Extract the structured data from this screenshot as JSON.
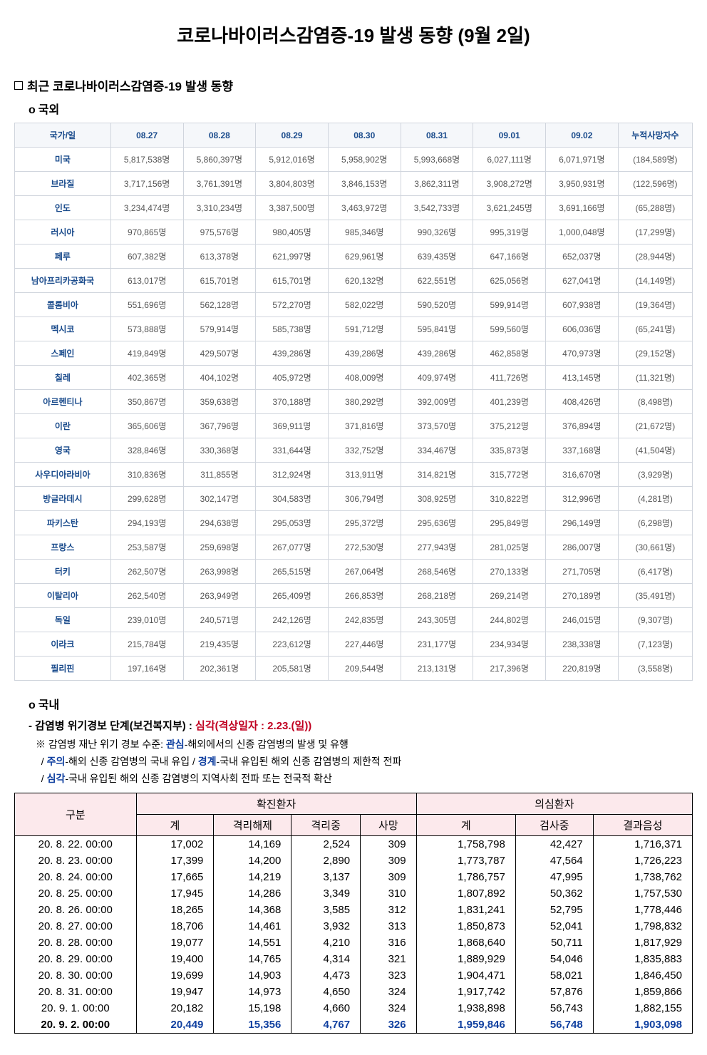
{
  "title": "코로나바이러스감염증-19 발생 동향 (9월 2일)",
  "section1": {
    "heading": "최근 코로나바이러스감염증-19 발생 동향",
    "sub_overseas": "국외",
    "sub_domestic": "국내"
  },
  "intl_table": {
    "headers": [
      "국가/일",
      "08.27",
      "08.28",
      "08.29",
      "08.30",
      "08.31",
      "09.01",
      "09.02",
      "누적사망자수"
    ],
    "rows": [
      {
        "country": "미국",
        "v": [
          "5,817,538명",
          "5,860,397명",
          "5,912,016명",
          "5,958,902명",
          "5,993,668명",
          "6,027,111명",
          "6,071,971명",
          "(184,589명)"
        ]
      },
      {
        "country": "브라질",
        "v": [
          "3,717,156명",
          "3,761,391명",
          "3,804,803명",
          "3,846,153명",
          "3,862,311명",
          "3,908,272명",
          "3,950,931명",
          "(122,596명)"
        ]
      },
      {
        "country": "인도",
        "v": [
          "3,234,474명",
          "3,310,234명",
          "3,387,500명",
          "3,463,972명",
          "3,542,733명",
          "3,621,245명",
          "3,691,166명",
          "(65,288명)"
        ]
      },
      {
        "country": "러시아",
        "v": [
          "970,865명",
          "975,576명",
          "980,405명",
          "985,346명",
          "990,326명",
          "995,319명",
          "1,000,048명",
          "(17,299명)"
        ]
      },
      {
        "country": "페루",
        "v": [
          "607,382명",
          "613,378명",
          "621,997명",
          "629,961명",
          "639,435명",
          "647,166명",
          "652,037명",
          "(28,944명)"
        ]
      },
      {
        "country": "남아프리카공화국",
        "v": [
          "613,017명",
          "615,701명",
          "615,701명",
          "620,132명",
          "622,551명",
          "625,056명",
          "627,041명",
          "(14,149명)"
        ]
      },
      {
        "country": "콜롬비아",
        "v": [
          "551,696명",
          "562,128명",
          "572,270명",
          "582,022명",
          "590,520명",
          "599,914명",
          "607,938명",
          "(19,364명)"
        ]
      },
      {
        "country": "멕시코",
        "v": [
          "573,888명",
          "579,914명",
          "585,738명",
          "591,712명",
          "595,841명",
          "599,560명",
          "606,036명",
          "(65,241명)"
        ]
      },
      {
        "country": "스페인",
        "v": [
          "419,849명",
          "429,507명",
          "439,286명",
          "439,286명",
          "439,286명",
          "462,858명",
          "470,973명",
          "(29,152명)"
        ]
      },
      {
        "country": "칠레",
        "v": [
          "402,365명",
          "404,102명",
          "405,972명",
          "408,009명",
          "409,974명",
          "411,726명",
          "413,145명",
          "(11,321명)"
        ]
      },
      {
        "country": "아르헨티나",
        "v": [
          "350,867명",
          "359,638명",
          "370,188명",
          "380,292명",
          "392,009명",
          "401,239명",
          "408,426명",
          "(8,498명)"
        ]
      },
      {
        "country": "이란",
        "v": [
          "365,606명",
          "367,796명",
          "369,911명",
          "371,816명",
          "373,570명",
          "375,212명",
          "376,894명",
          "(21,672명)"
        ]
      },
      {
        "country": "영국",
        "v": [
          "328,846명",
          "330,368명",
          "331,644명",
          "332,752명",
          "334,467명",
          "335,873명",
          "337,168명",
          "(41,504명)"
        ]
      },
      {
        "country": "사우디아라비아",
        "v": [
          "310,836명",
          "311,855명",
          "312,924명",
          "313,911명",
          "314,821명",
          "315,772명",
          "316,670명",
          "(3,929명)"
        ]
      },
      {
        "country": "방글라데시",
        "v": [
          "299,628명",
          "302,147명",
          "304,583명",
          "306,794명",
          "308,925명",
          "310,822명",
          "312,996명",
          "(4,281명)"
        ]
      },
      {
        "country": "파키스탄",
        "v": [
          "294,193명",
          "294,638명",
          "295,053명",
          "295,372명",
          "295,636명",
          "295,849명",
          "296,149명",
          "(6,298명)"
        ]
      },
      {
        "country": "프랑스",
        "v": [
          "253,587명",
          "259,698명",
          "267,077명",
          "272,530명",
          "277,943명",
          "281,025명",
          "286,007명",
          "(30,661명)"
        ]
      },
      {
        "country": "터키",
        "v": [
          "262,507명",
          "263,998명",
          "265,515명",
          "267,064명",
          "268,546명",
          "270,133명",
          "271,705명",
          "(6,417명)"
        ]
      },
      {
        "country": "이탈리아",
        "v": [
          "262,540명",
          "263,949명",
          "265,409명",
          "266,853명",
          "268,218명",
          "269,214명",
          "270,189명",
          "(35,491명)"
        ]
      },
      {
        "country": "독일",
        "v": [
          "239,010명",
          "240,571명",
          "242,126명",
          "242,835명",
          "243,305명",
          "244,802명",
          "246,015명",
          "(9,307명)"
        ]
      },
      {
        "country": "이라크",
        "v": [
          "215,784명",
          "219,435명",
          "223,612명",
          "227,446명",
          "231,177명",
          "234,934명",
          "238,338명",
          "(7,123명)"
        ]
      },
      {
        "country": "필리핀",
        "v": [
          "197,164명",
          "202,361명",
          "205,581명",
          "209,544명",
          "213,131명",
          "217,396명",
          "220,819명",
          "(3,558명)"
        ]
      }
    ]
  },
  "alert": {
    "prefix": "- 감염병 위기경보 단계(보건복지부) : ",
    "level": "심각(격상일자 : 2.23.(일))",
    "note_prefix": "※ 감염병 재난 위기 경보 수준: ",
    "n1a": "관심",
    "n1b": "-해외에서의 신종 감염병의 발생 및 유행",
    "n2a": "주의",
    "n2b": "-해외 신종 감염병의 국내 유입 / ",
    "n2c": "경계",
    "n2d": "-국내 유입된 해외 신종 감염병의 제한적 전파",
    "n3a": "심각",
    "n3b": "-국내 유입된 해외 신종 감염병의 지역사회 전파 또는 전국적 확산"
  },
  "dom_table": {
    "header_top": {
      "col1": "구분",
      "col2": "확진환자",
      "col3": "의심환자"
    },
    "header_sub": {
      "c1": "계",
      "c2": "격리해제",
      "c3": "격리중",
      "c4": "사망",
      "c5": "계",
      "c6": "검사중",
      "c7": "결과음성"
    },
    "rows": [
      {
        "date": "20. 8. 22. 00:00",
        "v": [
          "17,002",
          "14,169",
          "2,524",
          "309",
          "1,758,798",
          "42,427",
          "1,716,371"
        ]
      },
      {
        "date": "20. 8. 23. 00:00",
        "v": [
          "17,399",
          "14,200",
          "2,890",
          "309",
          "1,773,787",
          "47,564",
          "1,726,223"
        ]
      },
      {
        "date": "20. 8. 24. 00:00",
        "v": [
          "17,665",
          "14,219",
          "3,137",
          "309",
          "1,786,757",
          "47,995",
          "1,738,762"
        ]
      },
      {
        "date": "20. 8. 25. 00:00",
        "v": [
          "17,945",
          "14,286",
          "3,349",
          "310",
          "1,807,892",
          "50,362",
          "1,757,530"
        ]
      },
      {
        "date": "20. 8. 26. 00:00",
        "v": [
          "18,265",
          "14,368",
          "3,585",
          "312",
          "1,831,241",
          "52,795",
          "1,778,446"
        ]
      },
      {
        "date": "20. 8. 27. 00:00",
        "v": [
          "18,706",
          "14,461",
          "3,932",
          "313",
          "1,850,873",
          "52,041",
          "1,798,832"
        ]
      },
      {
        "date": "20. 8. 28. 00:00",
        "v": [
          "19,077",
          "14,551",
          "4,210",
          "316",
          "1,868,640",
          "50,711",
          "1,817,929"
        ]
      },
      {
        "date": "20. 8. 29. 00:00",
        "v": [
          "19,400",
          "14,765",
          "4,314",
          "321",
          "1,889,929",
          "54,046",
          "1,835,883"
        ]
      },
      {
        "date": "20. 8. 30. 00:00",
        "v": [
          "19,699",
          "14,903",
          "4,473",
          "323",
          "1,904,471",
          "58,021",
          "1,846,450"
        ]
      },
      {
        "date": "20. 8. 31. 00:00",
        "v": [
          "19,947",
          "14,973",
          "4,650",
          "324",
          "1,917,742",
          "57,876",
          "1,859,866"
        ]
      },
      {
        "date": "20. 9.  1. 00:00",
        "v": [
          "20,182",
          "15,198",
          "4,660",
          "324",
          "1,938,898",
          "56,743",
          "1,882,155"
        ]
      },
      {
        "date": "20. 9.  2. 00:00",
        "v": [
          "20,449",
          "15,356",
          "4,767",
          "326",
          "1,959,846",
          "56,748",
          "1,903,098"
        ],
        "bold": true
      }
    ]
  }
}
